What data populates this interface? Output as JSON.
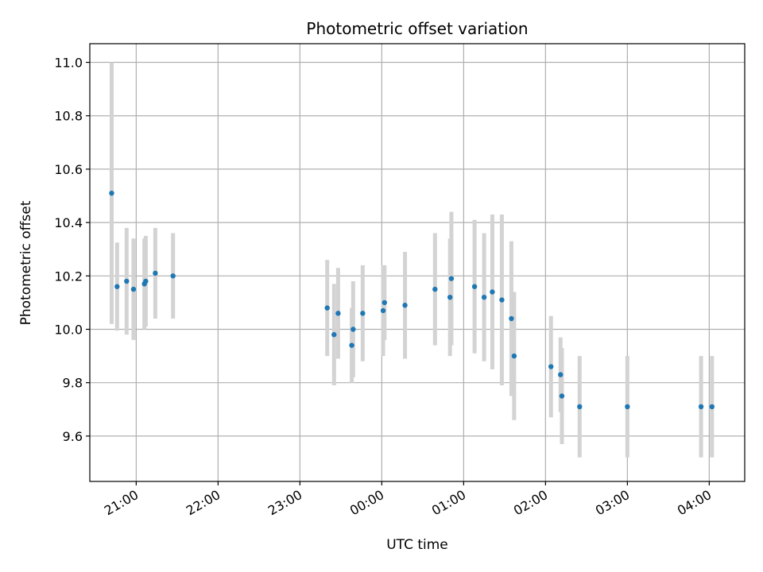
{
  "chart_data": {
    "type": "scatter",
    "title": "Photometric offset variation",
    "xlabel": "UTC time",
    "ylabel": "Photometric offset",
    "x_axis_type": "time",
    "xlim": [
      "20:26",
      "04:26"
    ],
    "ylim": [
      9.43,
      11.07
    ],
    "x_ticks": [
      "21:00",
      "22:00",
      "23:00",
      "00:00",
      "01:00",
      "02:00",
      "03:00",
      "04:00"
    ],
    "y_ticks": [
      "9.6",
      "9.8",
      "10.0",
      "10.2",
      "10.4",
      "10.6",
      "10.8",
      "11.0"
    ],
    "grid": true,
    "point_color": "#1f77b4",
    "errorbar_color": "#d3d3d3",
    "points": [
      {
        "t": "20:42",
        "y": 10.51,
        "err": 0.49
      },
      {
        "t": "20:46",
        "y": 10.16,
        "err": 0.165
      },
      {
        "t": "20:53",
        "y": 10.18,
        "err": 0.2
      },
      {
        "t": "20:58",
        "y": 10.15,
        "err": 0.19
      },
      {
        "t": "21:06",
        "y": 10.17,
        "err": 0.17
      },
      {
        "t": "21:07",
        "y": 10.18,
        "err": 0.17
      },
      {
        "t": "21:14",
        "y": 10.21,
        "err": 0.17
      },
      {
        "t": "21:27",
        "y": 10.2,
        "err": 0.16
      },
      {
        "t": "23:20",
        "y": 10.08,
        "err": 0.18
      },
      {
        "t": "23:25",
        "y": 9.98,
        "err": 0.19
      },
      {
        "t": "23:28",
        "y": 10.06,
        "err": 0.17
      },
      {
        "t": "23:38",
        "y": 9.94,
        "err": 0.14
      },
      {
        "t": "23:39",
        "y": 10.0,
        "err": 0.18
      },
      {
        "t": "23:46",
        "y": 10.06,
        "err": 0.18
      },
      {
        "t": "00:01",
        "y": 10.07,
        "err": 0.17
      },
      {
        "t": "00:02",
        "y": 10.1,
        "err": 0.14
      },
      {
        "t": "00:17",
        "y": 10.09,
        "err": 0.2
      },
      {
        "t": "00:39",
        "y": 10.15,
        "err": 0.21
      },
      {
        "t": "00:50",
        "y": 10.12,
        "err": 0.22
      },
      {
        "t": "00:51",
        "y": 10.19,
        "err": 0.25
      },
      {
        "t": "01:08",
        "y": 10.16,
        "err": 0.25
      },
      {
        "t": "01:15",
        "y": 10.12,
        "err": 0.24
      },
      {
        "t": "01:21",
        "y": 10.14,
        "err": 0.29
      },
      {
        "t": "01:28",
        "y": 10.11,
        "err": 0.32
      },
      {
        "t": "01:35",
        "y": 10.04,
        "err": 0.29
      },
      {
        "t": "01:37",
        "y": 9.9,
        "err": 0.24
      },
      {
        "t": "02:04",
        "y": 9.86,
        "err": 0.19
      },
      {
        "t": "02:11",
        "y": 9.83,
        "err": 0.14
      },
      {
        "t": "02:12",
        "y": 9.75,
        "err": 0.18
      },
      {
        "t": "02:25",
        "y": 9.71,
        "err": 0.19
      },
      {
        "t": "03:00",
        "y": 9.71,
        "err": 0.19
      },
      {
        "t": "03:54",
        "y": 9.71,
        "err": 0.19
      },
      {
        "t": "04:02",
        "y": 9.71,
        "err": 0.19
      }
    ]
  }
}
